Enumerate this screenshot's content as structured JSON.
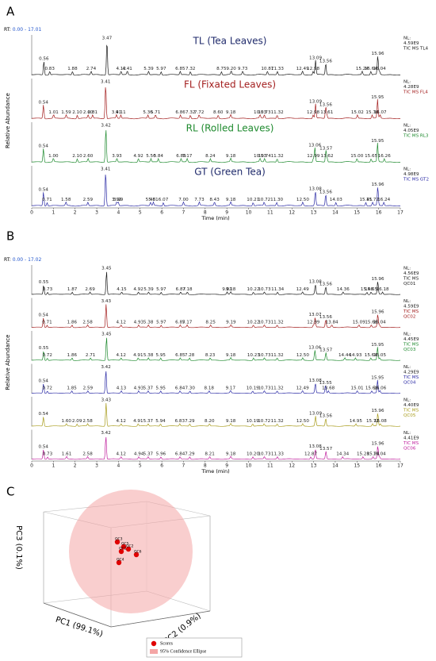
{
  "panels": [
    {
      "letter": "A",
      "rt_label": "RT:",
      "rt_range": "0.00 - 17.01",
      "y_label": "Relative Abundance",
      "x_label": "Time (min)",
      "xticks": [
        0,
        1,
        2,
        3,
        4,
        5,
        6,
        7,
        8,
        9,
        10,
        11,
        12,
        13,
        14,
        15,
        16,
        17
      ],
      "traces": [
        {
          "title": "TL (Tea Leaves)",
          "color": "#1a1a1a",
          "title_color": "#1f2a6b",
          "nl": [
            "NL:",
            "4.59E9",
            "TIC MS TL4"
          ],
          "peaks": [
            "0.56",
            "0.83",
            "1.88",
            "2.74",
            "3.47",
            "4.12",
            "4.41",
            "5.39",
            "5.97",
            "6.85",
            "7.32",
            "8.75",
            "9.20",
            "9.73",
            "10.87",
            "11.33",
            "12.49",
            "12.98",
            "13.09",
            "13.56",
            "15.24",
            "15.64",
            "15.96",
            "16.04"
          ]
        },
        {
          "title": "FL (Fixated Leaves)",
          "color": "#a31e1e",
          "title_color": "#a31e1e",
          "nl": [
            "NL:",
            "4.28E9",
            "TIC MS FL4"
          ],
          "peaks": [
            "0.54",
            "1.01",
            "1.59",
            "2.10",
            "2.60",
            "2.81",
            "3.41",
            "3.91",
            "4.11",
            "5.36",
            "5.71",
            "6.86",
            "7.32",
            "7.72",
            "8.60",
            "9.18",
            "10.53",
            "10.73",
            "11.32",
            "12.98",
            "13.09",
            "13.56",
            "13.61",
            "15.02",
            "15.70",
            "15.95",
            "16.07"
          ]
        },
        {
          "title": "RL (Rolled Leaves)",
          "color": "#1e8a2e",
          "title_color": "#1e8a2e",
          "nl": [
            "NL:",
            "4.05E9",
            "TIC MS RL3"
          ],
          "peaks": [
            "0.54",
            "1.00",
            "2.10",
            "2.60",
            "3.42",
            "3.93",
            "4.92",
            "5.50",
            "5.84",
            "6.89",
            "7.17",
            "8.24",
            "9.18",
            "10.53",
            "10.74",
            "11.32",
            "12.99",
            "13.06",
            "13.57",
            "13.62",
            "15.00",
            "15.65",
            "15.95",
            "16.26"
          ]
        },
        {
          "title": "GT (Green Tea)",
          "color": "#2a2aa5",
          "title_color": "#1f2a6b",
          "nl": [
            "NL:",
            "4.98E9",
            "TIC MS GT2"
          ],
          "peaks": [
            "0.54",
            "0.71",
            "1.58",
            "2.59",
            "3.41",
            "3.92",
            "3.99",
            "5.48",
            "5.61",
            "6.07",
            "7.00",
            "7.73",
            "8.43",
            "9.18",
            "10.21",
            "10.72",
            "11.30",
            "12.50",
            "13.08",
            "13.56",
            "14.03",
            "15.41",
            "15.72",
            "15.96",
            "16.24"
          ]
        }
      ]
    },
    {
      "letter": "B",
      "rt_label": "RT:",
      "rt_range": "0.00 - 17.02",
      "y_label": "Relative Abundance",
      "x_label": "Time (min)",
      "xticks": [
        0,
        1,
        2,
        3,
        4,
        5,
        6,
        7,
        8,
        9,
        10,
        11,
        12,
        13,
        14,
        15,
        16,
        17
      ],
      "traces": [
        {
          "color": "#1a1a1a",
          "nl": [
            "NL:",
            "4.56E9",
            "TIC MS",
            "QC01"
          ],
          "peaks": [
            "0.55",
            "0.73",
            "1.87",
            "2.69",
            "3.45",
            "4.15",
            "4.92",
            "5.39",
            "5.97",
            "6.87",
            "7.18",
            "9.01",
            "9.18",
            "10.22",
            "10.73",
            "11.34",
            "12.49",
            "13.08",
            "13.56",
            "14.36",
            "15.46",
            "15.65",
            "15.96",
            "16.18"
          ]
        },
        {
          "color": "#a31e1e",
          "nl": [
            "NL:",
            "4.59E9",
            "TIC MS",
            "QC02"
          ],
          "peaks": [
            "0.54",
            "0.71",
            "1.86",
            "2.58",
            "3.43",
            "4.12",
            "4.93",
            "5.38",
            "5.97",
            "6.85",
            "7.17",
            "8.25",
            "9.19",
            "10.22",
            "10.73",
            "11.32",
            "12.99",
            "13.07",
            "13.56",
            "13.84",
            "15.09",
            "15.66",
            "15.96",
            "16.04"
          ]
        },
        {
          "color": "#1e8a2e",
          "nl": [
            "NL:",
            "4.45E9",
            "TIC MS",
            "QC03"
          ],
          "peaks": [
            "0.55",
            "0.72",
            "1.86",
            "2.71",
            "3.45",
            "4.12",
            "4.91",
            "5.38",
            "5.95",
            "6.85",
            "7.28",
            "8.23",
            "9.18",
            "10.23",
            "10.73",
            "11.32",
            "12.50",
            "13.06",
            "13.57",
            "14.44",
            "14.93",
            "15.64",
            "15.95",
            "16.05"
          ]
        },
        {
          "color": "#2a2aa5",
          "nl": [
            "NL:",
            "4.29E9",
            "TIC MS",
            "QC04"
          ],
          "peaks": [
            "0.54",
            "0.72",
            "1.85",
            "2.59",
            "3.42",
            "4.13",
            "4.93",
            "5.37",
            "5.95",
            "6.84",
            "7.30",
            "8.18",
            "9.17",
            "10.19",
            "10.73",
            "11.32",
            "12.49",
            "13.08",
            "13.55",
            "13.68",
            "15.01",
            "15.68",
            "15.95",
            "16.06"
          ]
        },
        {
          "color": "#a89c1c",
          "nl": [
            "NL:",
            "4.40E9",
            "TIC MS",
            "QC05"
          ],
          "peaks": [
            "0.54",
            "1.60",
            "2.09",
            "2.58",
            "3.43",
            "4.12",
            "4.91",
            "5.37",
            "5.94",
            "6.83",
            "7.29",
            "8.20",
            "9.18",
            "10.19",
            "10.72",
            "11.32",
            "12.50",
            "13.09",
            "13.56",
            "14.95",
            "15.72",
            "15.96",
            "16.08"
          ]
        },
        {
          "color": "#c0209e",
          "nl": [
            "NL:",
            "4.41E9",
            "TIC MS",
            "QC06"
          ],
          "peaks": [
            "0.54",
            "0.73",
            "1.61",
            "2.58",
            "3.42",
            "4.12",
            "4.94",
            "5.37",
            "5.96",
            "6.84",
            "7.29",
            "8.21",
            "9.18",
            "10.20",
            "10.73",
            "11.33",
            "12.87",
            "13.08",
            "13.57",
            "14.34",
            "15.28",
            "15.74",
            "15.96",
            "16.04"
          ]
        }
      ]
    }
  ],
  "pca": {
    "letter": "C",
    "axes": [
      "PC1 (99.1%)",
      "PC2 (0.9%)",
      "PC3 (0.1%)"
    ],
    "points": [
      "QC3",
      "QC5",
      "QC2",
      "QC1",
      "QC6",
      "QC4"
    ],
    "legend": [
      "Scores",
      "95% Confidence Ellipse"
    ]
  }
}
